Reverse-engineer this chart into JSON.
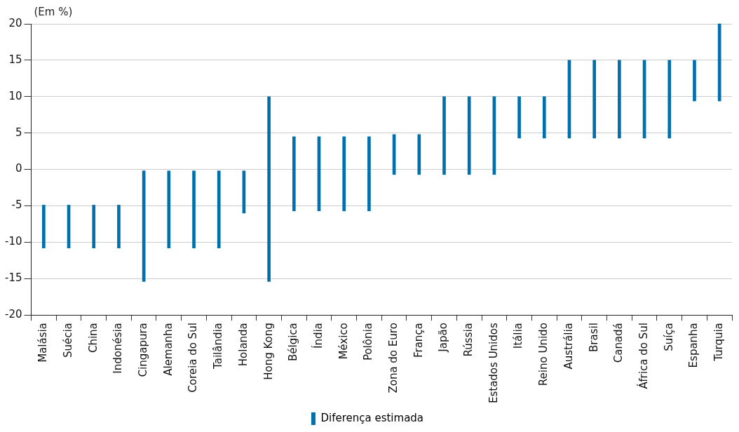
{
  "chart_data": {
    "type": "bar",
    "ylabel": "(Em %)",
    "categories": [
      "Malásia",
      "Suécia",
      "China",
      "Indonésia",
      "Cingapura",
      "Alemanha",
      "Coreia do Sul",
      "Tailândia",
      "Holanda",
      "Hong Kong",
      "Bélgica",
      "Índia",
      "México",
      "Polônia",
      "Zona do Euro",
      "França",
      "Japão",
      "Rússia",
      "Estados Unidos",
      "Itália",
      "Reino Unido",
      "Austrália",
      "Brasil",
      "Canadá",
      "África do Sul",
      "Suíça",
      "Espanha",
      "Turquia"
    ],
    "series": [
      {
        "name": "Diferença estimada",
        "color": "#0070ad",
        "base": [
          -10.8,
          -10.8,
          -10.8,
          -10.8,
          -15.4,
          -10.8,
          -10.8,
          -10.8,
          -6,
          -15.4,
          -5.7,
          -5.7,
          -5.7,
          -5.7,
          -0.7,
          -0.7,
          -0.7,
          -0.7,
          -0.7,
          4.3,
          4.3,
          4.3,
          4.3,
          4.3,
          4.3,
          4.3,
          9.4,
          9.4
        ],
        "values": [
          5.9,
          5.9,
          5.9,
          5.9,
          15.2,
          10.6,
          10.6,
          10.6,
          5.8,
          25.4,
          10.2,
          10.2,
          10.2,
          10.2,
          5.5,
          5.5,
          10.7,
          10.7,
          10.7,
          5.7,
          5.7,
          10.7,
          10.7,
          10.7,
          10.7,
          10.7,
          5.6,
          10.6
        ]
      }
    ],
    "ylim": [
      -20,
      20
    ],
    "yticks": [
      -20,
      -15,
      -10,
      -5,
      0,
      5,
      10,
      15,
      20
    ],
    "grid": "y",
    "legend": "bottom"
  }
}
